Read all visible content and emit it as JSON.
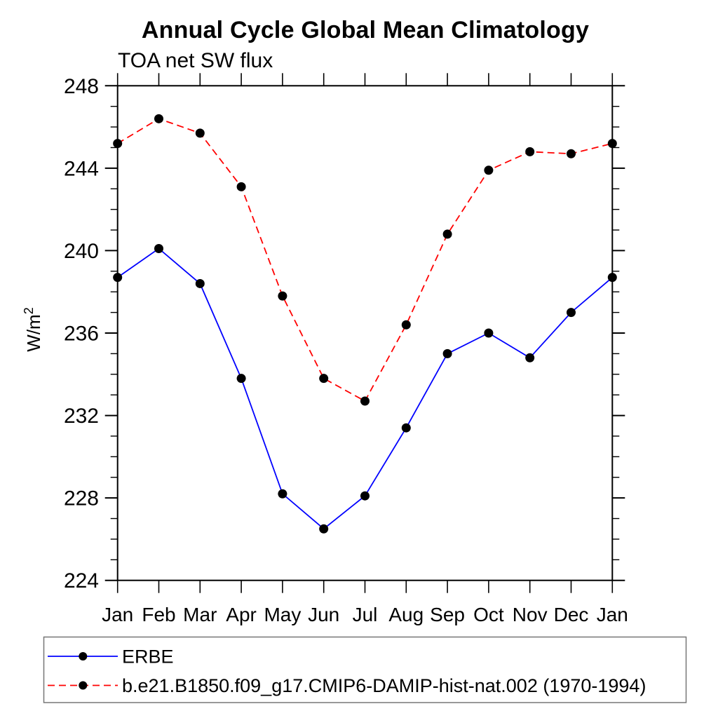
{
  "title": "Annual Cycle Global Mean Climatology",
  "subtitle": "TOA net SW flux",
  "chart_data": {
    "type": "line",
    "categories": [
      "Jan",
      "Feb",
      "Mar",
      "Apr",
      "May",
      "Jun",
      "Jul",
      "Aug",
      "Sep",
      "Oct",
      "Nov",
      "Dec",
      "Jan"
    ],
    "series": [
      {
        "name": "ERBE",
        "color": "#0000ff",
        "line_style": "solid",
        "marker": "filled-circle",
        "marker_color": "#000000",
        "values": [
          238.7,
          240.1,
          238.4,
          233.8,
          228.2,
          226.5,
          228.1,
          231.4,
          235.0,
          236.0,
          234.8,
          237.0,
          238.7
        ]
      },
      {
        "name": "b.e21.B1850.f09_g17.CMIP6-DAMIP-hist-nat.002 (1970-1994)",
        "color": "#ff0000",
        "line_style": "dashed",
        "marker": "filled-circle",
        "marker_color": "#000000",
        "values": [
          245.2,
          246.4,
          245.7,
          243.1,
          237.8,
          233.8,
          232.7,
          236.4,
          240.8,
          243.9,
          244.8,
          244.7,
          245.2
        ]
      }
    ],
    "xlabel": "",
    "ylabel": "W/m²",
    "ylim": [
      224,
      248
    ],
    "ytick_step": 4,
    "ytick_minor_step": 1,
    "grid": false,
    "legend_position": "bottom-left-box",
    "axis_color": "#000000",
    "text_color": "#000000",
    "background_color": "#ffffff"
  }
}
